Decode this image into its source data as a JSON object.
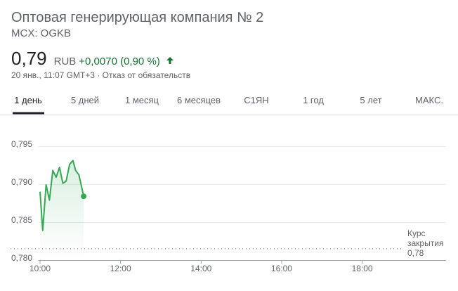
{
  "header": {
    "title": "Оптовая генерирующая компания № 2",
    "ticker": "MCX: OGKB",
    "price": "0,79",
    "currency": "RUB",
    "change": "+0,0070 (0,90 %)",
    "timestamp": "20 янв., 11:07 GMT+3 · Отказ от обязательств"
  },
  "tabs": [
    "1 день",
    "5 дней",
    "1 месяц",
    "6 месяцев",
    "С1ЯН",
    "1 год",
    "5 лет",
    "МАКС."
  ],
  "chart_data": {
    "type": "line",
    "x": [
      600,
      604,
      609,
      614,
      619,
      624,
      629,
      634,
      639,
      644,
      649,
      653,
      658,
      665
    ],
    "series": [
      {
        "color": "#34a853",
        "values": [
          0.789,
          0.7839,
          0.7899,
          0.7879,
          0.7918,
          0.7909,
          0.7922,
          0.7901,
          0.7904,
          0.7926,
          0.7931,
          0.7918,
          0.7912,
          0.7884
        ]
      }
    ],
    "xlim": [
      600,
      1205
    ],
    "xticks": [
      {
        "value": 600,
        "label": "10:00"
      },
      {
        "value": 720,
        "label": "12:00"
      },
      {
        "value": 840,
        "label": "14:00"
      },
      {
        "value": 960,
        "label": "16:00"
      },
      {
        "value": 1080,
        "label": "18:00"
      }
    ],
    "ylim": [
      0.78,
      0.7985
    ],
    "yticks": [
      {
        "value": 0.78,
        "label": "0,780"
      },
      {
        "value": 0.785,
        "label": "0,785"
      },
      {
        "value": 0.79,
        "label": "0,790"
      },
      {
        "value": 0.795,
        "label": "0,795"
      }
    ],
    "grid": true,
    "previous_close": {
      "label": "Курс закрытия",
      "value": 0.7815,
      "value_label": "0,78"
    }
  }
}
